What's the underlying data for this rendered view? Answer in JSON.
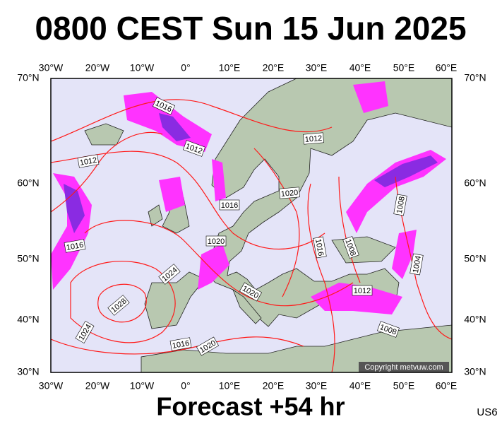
{
  "header": {
    "title": "0800 CEST Sun 15 Jun 2025"
  },
  "footer": {
    "forecast": "Forecast +54 hr",
    "code": "US6",
    "copyright": "Copyright metvuw.com"
  },
  "axes": {
    "longitudes": [
      "30°W",
      "20°W",
      "10°W",
      "0°",
      "10°E",
      "20°E",
      "30°E",
      "40°E",
      "50°E",
      "60°E"
    ],
    "latitudes": [
      "70°N",
      "60°N",
      "50°N",
      "40°N",
      "30°N"
    ]
  },
  "isobar_labels": [
    "1016",
    "1012",
    "1012",
    "1012",
    "1020",
    "1016",
    "1020",
    "1016",
    "1024",
    "1028",
    "1020",
    "1016",
    "1008",
    "1008",
    "1004",
    "1012",
    "1008",
    "1024",
    "1016",
    "1020"
  ]
}
